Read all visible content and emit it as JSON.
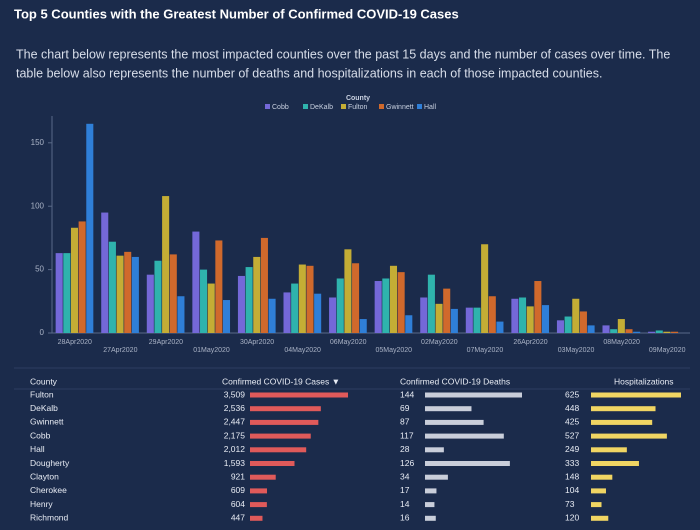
{
  "header": {
    "title": "Top 5 Counties with the Greatest Number of Confirmed COVID-19 Cases",
    "description": [
      "The chart below represents the most impacted counties over the past 15 days and the number of cases over time. The",
      "table below also represents the number of deaths and hospitalizations in each of those impacted counties."
    ]
  },
  "chart_data": {
    "type": "bar",
    "legend_title": "County",
    "legend_position": "top",
    "categories": [
      "28Apr2020",
      "27Apr2020",
      "29Apr2020",
      "01May2020",
      "30Apr2020",
      "04May2020",
      "06May2020",
      "05May2020",
      "02May2020",
      "07May2020",
      "26Apr2020",
      "03May2020",
      "08May2020",
      "09May2020"
    ],
    "series": [
      {
        "name": "Cobb",
        "color": "#7468d8",
        "values": [
          63,
          95,
          46,
          80,
          45,
          32,
          28,
          41,
          28,
          20,
          27,
          10,
          6,
          1
        ]
      },
      {
        "name": "DeKalb",
        "color": "#2fb3ad",
        "values": [
          63,
          72,
          57,
          50,
          52,
          39,
          43,
          43,
          46,
          20,
          28,
          13,
          3,
          2
        ]
      },
      {
        "name": "Fulton",
        "color": "#c4ad35",
        "values": [
          83,
          61,
          108,
          39,
          60,
          54,
          66,
          53,
          23,
          70,
          21,
          27,
          11,
          1
        ]
      },
      {
        "name": "Gwinnett",
        "color": "#d0692c",
        "values": [
          88,
          64,
          62,
          73,
          75,
          53,
          55,
          48,
          35,
          29,
          41,
          17,
          3,
          1
        ]
      },
      {
        "name": "Hall",
        "color": "#2f7fd8",
        "values": [
          165,
          60,
          29,
          26,
          27,
          31,
          11,
          14,
          19,
          9,
          22,
          6,
          1,
          0
        ]
      }
    ],
    "ylim": [
      0,
      168
    ],
    "yticks": [
      0,
      50,
      100,
      150
    ],
    "grid": false
  },
  "table": {
    "columns": [
      "County",
      "Confirmed COVID-19 Cases ▼",
      "Confirmed COVID-19 Deaths",
      "Hospitalizations"
    ],
    "rows": [
      {
        "county": "Fulton",
        "cases": {
          "value": 3509,
          "label": "3,509"
        },
        "deaths": 144,
        "hospitalizations": 625
      },
      {
        "county": "DeKalb",
        "cases": {
          "value": 2536,
          "label": "2,536"
        },
        "deaths": 69,
        "hospitalizations": 448
      },
      {
        "county": "Gwinnett",
        "cases": {
          "value": 2447,
          "label": "2,447"
        },
        "deaths": 87,
        "hospitalizations": 425
      },
      {
        "county": "Cobb",
        "cases": {
          "value": 2175,
          "label": "2,175"
        },
        "deaths": 117,
        "hospitalizations": 527
      },
      {
        "county": "Hall",
        "cases": {
          "value": 2012,
          "label": "2,012"
        },
        "deaths": 28,
        "hospitalizations": 249
      },
      {
        "county": "Dougherty",
        "cases": {
          "value": 1593,
          "label": "1,593"
        },
        "deaths": 126,
        "hospitalizations": 333
      },
      {
        "county": "Clayton",
        "cases": {
          "value": 921,
          "label": "921"
        },
        "deaths": 34,
        "hospitalizations": 148
      },
      {
        "county": "Cherokee",
        "cases": {
          "value": 609,
          "label": "609"
        },
        "deaths": 17,
        "hospitalizations": 104
      },
      {
        "county": "Henry",
        "cases": {
          "value": 604,
          "label": "604"
        },
        "deaths": 14,
        "hospitalizations": 73
      },
      {
        "county": "Richmond",
        "cases": {
          "value": 447,
          "label": "447"
        },
        "deaths": 16,
        "hospitalizations": 120
      }
    ]
  }
}
